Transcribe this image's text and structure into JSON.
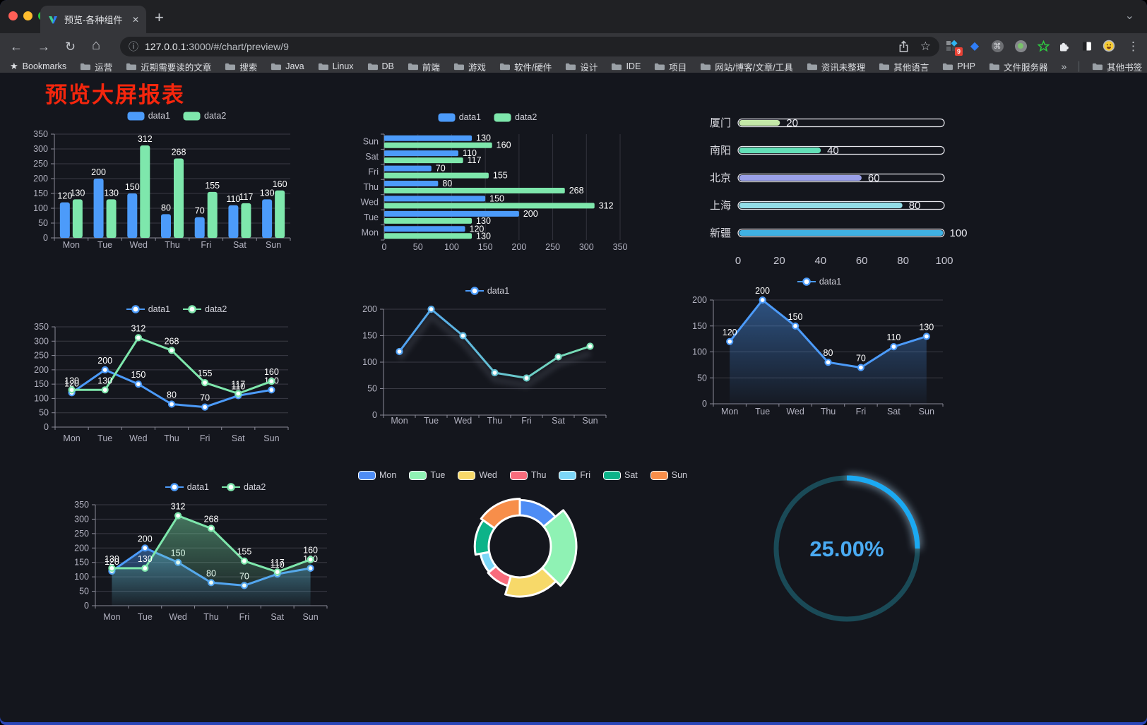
{
  "browser": {
    "tab": {
      "title": "预览-各种组件"
    },
    "url": {
      "host": "127.0.0.1",
      "rest": ":3000/#/chart/preview/9"
    },
    "extensions_badge": "9",
    "icons": {
      "back": "←",
      "forward": "→",
      "reload": "↻",
      "home": "⌂",
      "info": "ⓘ",
      "star": "☆",
      "menu": "⋮",
      "close": "✕",
      "new_tab": "+",
      "chevron": "⌄",
      "bookmarks_star": "★",
      "gem": "◆",
      "command": "⌘",
      "overflow": "»",
      "divider": "│"
    }
  },
  "bookmarks": {
    "label": "Bookmarks",
    "items": [
      "运营",
      "近期需要读的文章",
      "搜索",
      "Java",
      "Linux",
      "DB",
      "前端",
      "游戏",
      "软件/硬件",
      "设计",
      "IDE",
      "项目",
      "网站/博客/文章/工具",
      "资讯未整理",
      "其他语言",
      "PHP",
      "文件服务器"
    ],
    "overflow": "»",
    "other": "其他书签"
  },
  "page": {
    "title": "预览大屏报表"
  },
  "theme": {
    "background": "#14161d",
    "grid": "#3a3b45",
    "axis": "#8a8a98",
    "tick_text": "#b2b2c0",
    "value_text": "#ffffff",
    "title_red": "#f5260d",
    "blue": "#4c9bfa",
    "green": "#7ee7ac"
  },
  "chart_data": [
    {
      "type": "bar",
      "title": "",
      "categories": [
        "Mon",
        "Tue",
        "Wed",
        "Thu",
        "Fri",
        "Sat",
        "Sun"
      ],
      "series": [
        {
          "name": "data1",
          "color": "#4c9bfa",
          "values": [
            120,
            200,
            150,
            80,
            70,
            110,
            130
          ]
        },
        {
          "name": "data2",
          "color": "#7ee7ac",
          "values": [
            130,
            130,
            312,
            268,
            155,
            117,
            160
          ]
        }
      ],
      "ymax": 350,
      "ystep": 50,
      "legend_position": "top",
      "grid": true
    },
    {
      "type": "bar",
      "orientation": "horizontal",
      "title": "",
      "categories": [
        "Sun",
        "Sat",
        "Fri",
        "Thu",
        "Wed",
        "Tue",
        "Mon"
      ],
      "series": [
        {
          "name": "data1",
          "color": "#4c9bfa",
          "values": [
            130,
            110,
            70,
            80,
            150,
            200,
            120
          ]
        },
        {
          "name": "data2",
          "color": "#7ee7ac",
          "values": [
            160,
            117,
            155,
            268,
            312,
            130,
            130
          ]
        }
      ],
      "xmax": 350,
      "xstep": 50,
      "legend_position": "top",
      "grid": true
    },
    {
      "type": "bar",
      "subtype": "progress",
      "title": "",
      "rows": [
        {
          "label": "厦门",
          "value": 20,
          "color": "#c4e8a8"
        },
        {
          "label": "南阳",
          "value": 40,
          "color": "#63dfb7"
        },
        {
          "label": "北京",
          "value": 60,
          "color": "#9aa0e8"
        },
        {
          "label": "上海",
          "value": 80,
          "color": "#93dde8"
        },
        {
          "label": "新疆",
          "value": 100,
          "color": "#3fb1e3"
        }
      ],
      "xmax": 100,
      "xticks": [
        0,
        20,
        40,
        60,
        80,
        100
      ]
    },
    {
      "type": "line",
      "title": "",
      "categories": [
        "Mon",
        "Tue",
        "Wed",
        "Thu",
        "Fri",
        "Sat",
        "Sun"
      ],
      "series": [
        {
          "name": "data1",
          "color": "#4c9bfa",
          "values": [
            120,
            200,
            150,
            80,
            70,
            110,
            130
          ]
        },
        {
          "name": "data2",
          "color": "#7ee7ac",
          "values": [
            130,
            130,
            312,
            268,
            155,
            117,
            160
          ]
        }
      ],
      "ymax": 350,
      "ystep": 50,
      "show_labels": true,
      "legend_position": "top",
      "grid": true
    },
    {
      "type": "line",
      "title": "",
      "categories": [
        "Mon",
        "Tue",
        "Wed",
        "Thu",
        "Fri",
        "Sat",
        "Sun"
      ],
      "series": [
        {
          "name": "data1",
          "color": "#4c9bfa",
          "gradient": [
            "#4c9bfa",
            "#7ee7ac"
          ],
          "shadow": true,
          "values": [
            120,
            200,
            150,
            80,
            70,
            110,
            130
          ]
        }
      ],
      "ymax": 200,
      "ystep": 50,
      "show_labels": false,
      "legend_position": "top",
      "grid": true
    },
    {
      "type": "area",
      "title": "",
      "categories": [
        "Mon",
        "Tue",
        "Wed",
        "Thu",
        "Fri",
        "Sat",
        "Sun"
      ],
      "series": [
        {
          "name": "data1",
          "color": "#4c9bfa",
          "area": true,
          "values": [
            120,
            200,
            150,
            80,
            70,
            110,
            130
          ]
        }
      ],
      "ymax": 200,
      "ystep": 50,
      "show_labels": true,
      "legend_position": "top",
      "grid": true
    },
    {
      "type": "area",
      "title": "",
      "categories": [
        "Mon",
        "Tue",
        "Wed",
        "Thu",
        "Fri",
        "Sat",
        "Sun"
      ],
      "series": [
        {
          "name": "data1",
          "color": "#4c9bfa",
          "area": true,
          "values": [
            120,
            200,
            150,
            80,
            70,
            110,
            130
          ]
        },
        {
          "name": "data2",
          "color": "#7ee7ac",
          "area": true,
          "values": [
            130,
            130,
            312,
            268,
            155,
            117,
            160
          ]
        }
      ],
      "ymax": 350,
      "ystep": 50,
      "show_labels": true,
      "legend_position": "top",
      "grid": true
    },
    {
      "type": "pie",
      "subtype": "rose-donut",
      "title": "",
      "categories": [
        "Mon",
        "Tue",
        "Wed",
        "Thu",
        "Fri",
        "Sat",
        "Sun"
      ],
      "values": [
        120,
        200,
        150,
        80,
        70,
        110,
        130
      ],
      "colors": [
        "#4e8df5",
        "#8ff2b4",
        "#f7d969",
        "#f96c7c",
        "#7cd6f7",
        "#0db389",
        "#f78e4a"
      ],
      "border_color": "#ffffff",
      "legend_position": "top"
    },
    {
      "type": "gauge",
      "title": "",
      "value": 25,
      "max": 100,
      "label": "25.00%",
      "color": "#1ba9f2",
      "track_color": "#1a4a57",
      "label_color": "#4aabf3"
    }
  ]
}
